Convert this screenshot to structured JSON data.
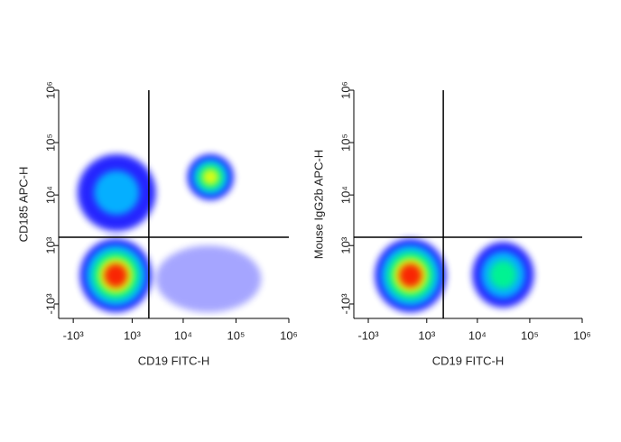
{
  "chart_data": [
    {
      "type": "density",
      "xlabel": "CD19 FITC-H",
      "ylabel": "CD185 APC-H",
      "scale": "biexponential",
      "xlim": [
        -2000,
        1000000
      ],
      "ylim": [
        -2000,
        1000000
      ],
      "xticks": [
        {
          "value": -1000,
          "label": "-10³"
        },
        {
          "value": 1000,
          "label": "10³"
        },
        {
          "value": 10000,
          "label": "10⁴"
        },
        {
          "value": 100000,
          "label": "10⁵"
        },
        {
          "value": 1000000,
          "label": "10⁶"
        }
      ],
      "yticks": [
        {
          "value": -1000,
          "label": "-10³"
        },
        {
          "value": 1000,
          "label": "10³"
        },
        {
          "value": 10000,
          "label": "10⁴"
        },
        {
          "value": 100000,
          "label": "10⁵"
        },
        {
          "value": 1000000,
          "label": "10⁶"
        }
      ],
      "gates": {
        "x": 2200,
        "y": 1500
      },
      "colormap": [
        "#0000ff",
        "#00c8ff",
        "#00ff80",
        "#ffff00",
        "#ff0000"
      ],
      "populations": [
        {
          "x": [
            -700,
            2500
          ],
          "y": [
            -1500,
            1400
          ],
          "levels": 5
        },
        {
          "x": [
            -800,
            3000
          ],
          "y": [
            2000,
            60000
          ],
          "levels": 2
        },
        {
          "x": [
            12000,
            90000
          ],
          "y": [
            8000,
            60000
          ],
          "levels": 4
        },
        {
          "x": [
            3000,
            300000
          ],
          "y": [
            -1500,
            1000
          ],
          "levels": 1
        }
      ]
    },
    {
      "type": "density",
      "xlabel": "CD19 FITC-H",
      "ylabel": "Mouse IgG2b APC-H",
      "scale": "biexponential",
      "xlim": [
        -2000,
        1000000
      ],
      "ylim": [
        -2000,
        1000000
      ],
      "xticks": [
        {
          "value": -1000,
          "label": "-10³"
        },
        {
          "value": 1000,
          "label": "10³"
        },
        {
          "value": 10000,
          "label": "10⁴"
        },
        {
          "value": 100000,
          "label": "10⁵"
        },
        {
          "value": 1000000,
          "label": "10⁶"
        }
      ],
      "yticks": [
        {
          "value": -1000,
          "label": "-10³"
        },
        {
          "value": 1000,
          "label": "10³"
        },
        {
          "value": 10000,
          "label": "10⁴"
        },
        {
          "value": 100000,
          "label": "10⁵"
        },
        {
          "value": 1000000,
          "label": "10⁶"
        }
      ],
      "gates": {
        "x": 2200,
        "y": 1500
      },
      "colormap": [
        "#0000ff",
        "#00c8ff",
        "#00ff80",
        "#ffff00",
        "#ff0000"
      ],
      "populations": [
        {
          "x": [
            -700,
            2500
          ],
          "y": [
            -1500,
            1400
          ],
          "levels": 5
        },
        {
          "x": [
            8000,
            120000
          ],
          "y": [
            -1200,
            1200
          ],
          "levels": 3
        }
      ]
    }
  ]
}
